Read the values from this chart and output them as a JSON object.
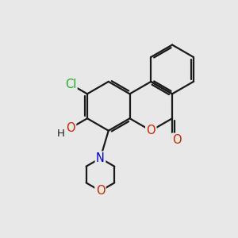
{
  "background_color": "#e8e8e8",
  "bond_color": "#1a1a1a",
  "bond_width": 1.6,
  "atom_colors": {
    "Cl": "#22aa22",
    "O": "#cc2200",
    "N": "#0000cc",
    "C": "#1a1a1a",
    "H": "#1a1a1a"
  },
  "font_size": 10.5,
  "font_size_h": 9.5,
  "xlim": [
    0,
    10
  ],
  "ylim": [
    0,
    10
  ],
  "figsize": [
    3.0,
    3.0
  ],
  "dpi": 100
}
